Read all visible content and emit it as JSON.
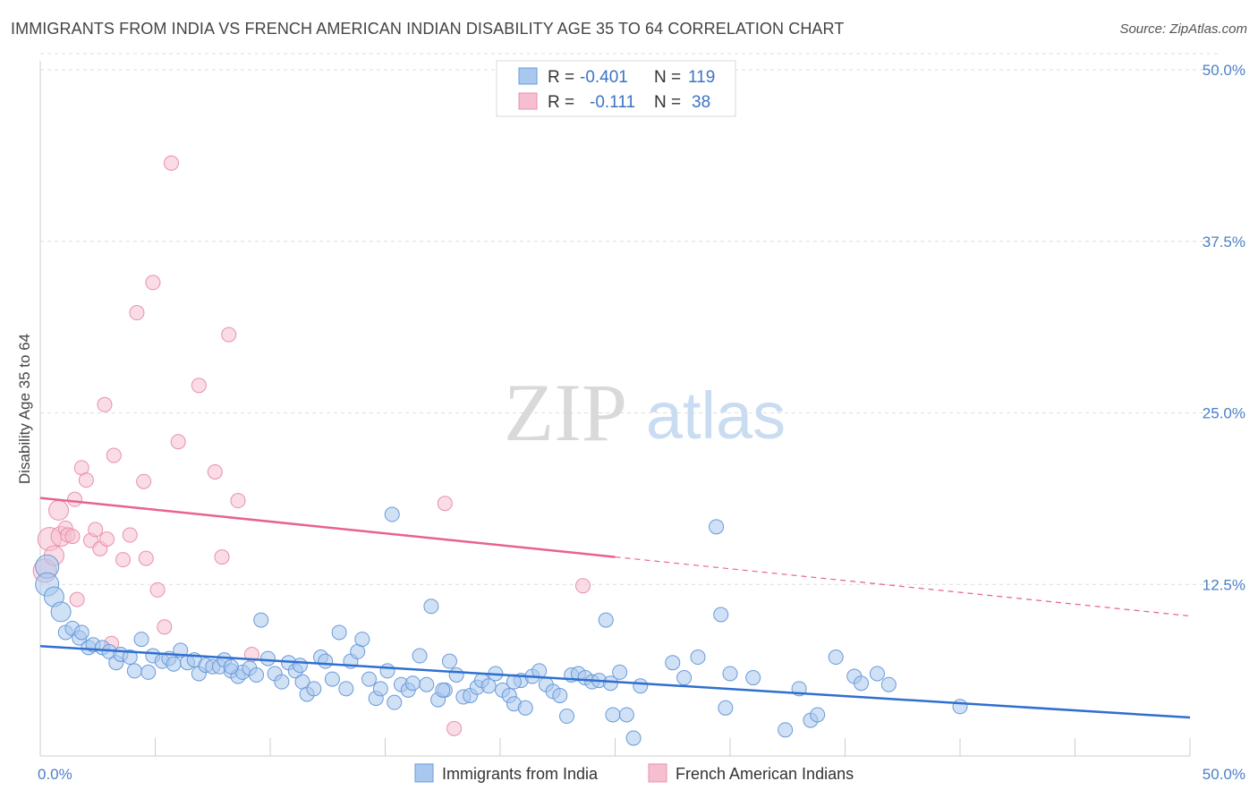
{
  "title": "IMMIGRANTS FROM INDIA VS FRENCH AMERICAN INDIAN DISABILITY AGE 35 TO 64 CORRELATION CHART",
  "source": "Source: ZipAtlas.com",
  "watermark": {
    "zip": "ZIP",
    "atlas": "atlas"
  },
  "colors": {
    "blue_fill": "#a9c8ef",
    "blue_stroke": "#6a9ad8",
    "blue_line": "#2f6fcf",
    "pink_fill": "#f5bfd0",
    "pink_stroke": "#e890ad",
    "pink_line": "#e8628f",
    "grid": "#dddddd",
    "axis_text": "#4a7fc8"
  },
  "legend": {
    "r_label": "R =",
    "n_label": "N =",
    "entries": [
      {
        "r": "-0.401",
        "n": "119"
      },
      {
        "r": "-0.111",
        "n": "38"
      }
    ]
  },
  "chart_data": {
    "type": "scatter",
    "title": "IMMIGRANTS FROM INDIA VS FRENCH AMERICAN INDIAN DISABILITY AGE 35 TO 64 CORRELATION CHART",
    "xlabel": "",
    "ylabel": "Disability Age 35 to 64",
    "xlim": [
      0,
      50
    ],
    "ylim": [
      0,
      50
    ],
    "x_tick_labels": [
      "0.0%",
      "50.0%"
    ],
    "y_ticks": [
      12.5,
      25.0,
      37.5,
      50.0
    ],
    "y_tick_labels": [
      "12.5%",
      "25.0%",
      "37.5%",
      "50.0%"
    ],
    "grid": true,
    "legend_position": "bottom",
    "series": [
      {
        "name": "Immigrants from India",
        "color": "#a9c8ef",
        "r": -0.401,
        "n": 119,
        "trend": {
          "x": [
            0,
            50
          ],
          "y": [
            8.0,
            2.8
          ],
          "dashed_from": null
        },
        "points": [
          [
            0.3,
            13.8
          ],
          [
            0.3,
            12.5
          ],
          [
            0.6,
            11.6
          ],
          [
            0.9,
            10.5
          ],
          [
            1.1,
            9.0
          ],
          [
            1.4,
            9.3
          ],
          [
            1.7,
            8.6
          ],
          [
            1.8,
            9.0
          ],
          [
            2.1,
            7.9
          ],
          [
            2.3,
            8.1
          ],
          [
            2.7,
            7.9
          ],
          [
            3.0,
            7.6
          ],
          [
            3.3,
            6.8
          ],
          [
            3.5,
            7.4
          ],
          [
            3.9,
            7.2
          ],
          [
            4.1,
            6.2
          ],
          [
            4.4,
            8.5
          ],
          [
            4.7,
            6.1
          ],
          [
            4.9,
            7.3
          ],
          [
            5.3,
            6.9
          ],
          [
            5.6,
            7.1
          ],
          [
            5.8,
            6.7
          ],
          [
            6.1,
            7.7
          ],
          [
            6.4,
            6.8
          ],
          [
            6.7,
            7.0
          ],
          [
            6.9,
            6.0
          ],
          [
            7.2,
            6.6
          ],
          [
            7.5,
            6.5
          ],
          [
            7.8,
            6.5
          ],
          [
            8.0,
            7.0
          ],
          [
            8.3,
            6.2
          ],
          [
            8.6,
            5.8
          ],
          [
            8.8,
            6.1
          ],
          [
            9.1,
            6.4
          ],
          [
            9.4,
            5.9
          ],
          [
            9.6,
            9.9
          ],
          [
            9.9,
            7.1
          ],
          [
            10.2,
            6.0
          ],
          [
            10.5,
            5.4
          ],
          [
            10.8,
            6.8
          ],
          [
            11.1,
            6.2
          ],
          [
            11.4,
            5.4
          ],
          [
            11.6,
            4.5
          ],
          [
            11.9,
            4.9
          ],
          [
            12.2,
            7.2
          ],
          [
            12.4,
            6.9
          ],
          [
            12.7,
            5.6
          ],
          [
            13.0,
            9.0
          ],
          [
            13.3,
            4.9
          ],
          [
            13.5,
            6.9
          ],
          [
            13.8,
            7.6
          ],
          [
            14.0,
            8.5
          ],
          [
            14.3,
            5.6
          ],
          [
            14.6,
            4.2
          ],
          [
            14.8,
            4.9
          ],
          [
            15.1,
            6.2
          ],
          [
            15.4,
            3.9
          ],
          [
            15.7,
            5.2
          ],
          [
            16.0,
            4.8
          ],
          [
            16.2,
            5.3
          ],
          [
            16.5,
            7.3
          ],
          [
            16.8,
            5.2
          ],
          [
            17.0,
            10.9
          ],
          [
            17.3,
            4.1
          ],
          [
            17.6,
            4.8
          ],
          [
            17.8,
            6.9
          ],
          [
            18.1,
            5.9
          ],
          [
            18.4,
            4.3
          ],
          [
            18.7,
            4.4
          ],
          [
            19.0,
            5.0
          ],
          [
            19.2,
            5.5
          ],
          [
            19.5,
            5.1
          ],
          [
            19.8,
            6.0
          ],
          [
            20.1,
            4.8
          ],
          [
            20.4,
            4.4
          ],
          [
            20.6,
            3.8
          ],
          [
            20.9,
            5.5
          ],
          [
            21.1,
            3.5
          ],
          [
            21.4,
            5.8
          ],
          [
            21.7,
            6.2
          ],
          [
            22.0,
            5.2
          ],
          [
            22.3,
            4.7
          ],
          [
            22.6,
            4.4
          ],
          [
            22.9,
            2.9
          ],
          [
            23.1,
            5.9
          ],
          [
            23.4,
            6.0
          ],
          [
            23.7,
            5.7
          ],
          [
            24.0,
            5.4
          ],
          [
            24.3,
            5.5
          ],
          [
            24.6,
            9.9
          ],
          [
            24.9,
            3.0
          ],
          [
            25.2,
            6.1
          ],
          [
            25.5,
            3.0
          ],
          [
            25.8,
            1.3
          ],
          [
            26.1,
            5.1
          ],
          [
            27.5,
            6.8
          ],
          [
            28.0,
            5.7
          ],
          [
            28.6,
            7.2
          ],
          [
            29.4,
            16.7
          ],
          [
            29.6,
            10.3
          ],
          [
            29.8,
            3.5
          ],
          [
            30.0,
            6.0
          ],
          [
            31.0,
            5.7
          ],
          [
            32.4,
            1.9
          ],
          [
            33.0,
            4.9
          ],
          [
            33.5,
            2.6
          ],
          [
            33.8,
            3.0
          ],
          [
            34.6,
            7.2
          ],
          [
            35.4,
            5.8
          ],
          [
            35.7,
            5.3
          ],
          [
            36.4,
            6.0
          ],
          [
            36.9,
            5.2
          ],
          [
            40.0,
            3.6
          ],
          [
            15.3,
            17.6
          ],
          [
            8.3,
            6.5
          ],
          [
            11.3,
            6.6
          ],
          [
            17.5,
            4.8
          ],
          [
            20.6,
            5.4
          ],
          [
            24.8,
            5.3
          ]
        ]
      },
      {
        "name": "French American Indians",
        "color": "#f5bfd0",
        "r": -0.111,
        "n": 38,
        "trend": {
          "x": [
            0,
            50
          ],
          "y": [
            18.8,
            10.2
          ],
          "dashed_from": 25.0
        },
        "points": [
          [
            0.2,
            13.5
          ],
          [
            0.4,
            15.8
          ],
          [
            0.6,
            14.6
          ],
          [
            0.8,
            17.9
          ],
          [
            0.9,
            16.0
          ],
          [
            1.1,
            16.6
          ],
          [
            1.2,
            16.1
          ],
          [
            1.4,
            16.0
          ],
          [
            1.5,
            18.7
          ],
          [
            1.6,
            11.4
          ],
          [
            1.8,
            21.0
          ],
          [
            2.0,
            20.1
          ],
          [
            2.2,
            15.7
          ],
          [
            2.4,
            16.5
          ],
          [
            2.6,
            15.1
          ],
          [
            2.8,
            25.6
          ],
          [
            2.9,
            15.8
          ],
          [
            3.1,
            8.2
          ],
          [
            3.2,
            21.9
          ],
          [
            3.6,
            14.3
          ],
          [
            3.9,
            16.1
          ],
          [
            4.2,
            32.3
          ],
          [
            4.5,
            20.0
          ],
          [
            4.6,
            14.4
          ],
          [
            4.9,
            34.5
          ],
          [
            5.1,
            12.1
          ],
          [
            5.4,
            9.4
          ],
          [
            5.7,
            43.2
          ],
          [
            6.0,
            22.9
          ],
          [
            6.9,
            27.0
          ],
          [
            7.6,
            20.7
          ],
          [
            7.9,
            14.5
          ],
          [
            8.2,
            30.7
          ],
          [
            8.6,
            18.6
          ],
          [
            9.2,
            7.4
          ],
          [
            17.6,
            18.4
          ],
          [
            18.0,
            2.0
          ],
          [
            23.6,
            12.4
          ]
        ]
      }
    ]
  }
}
